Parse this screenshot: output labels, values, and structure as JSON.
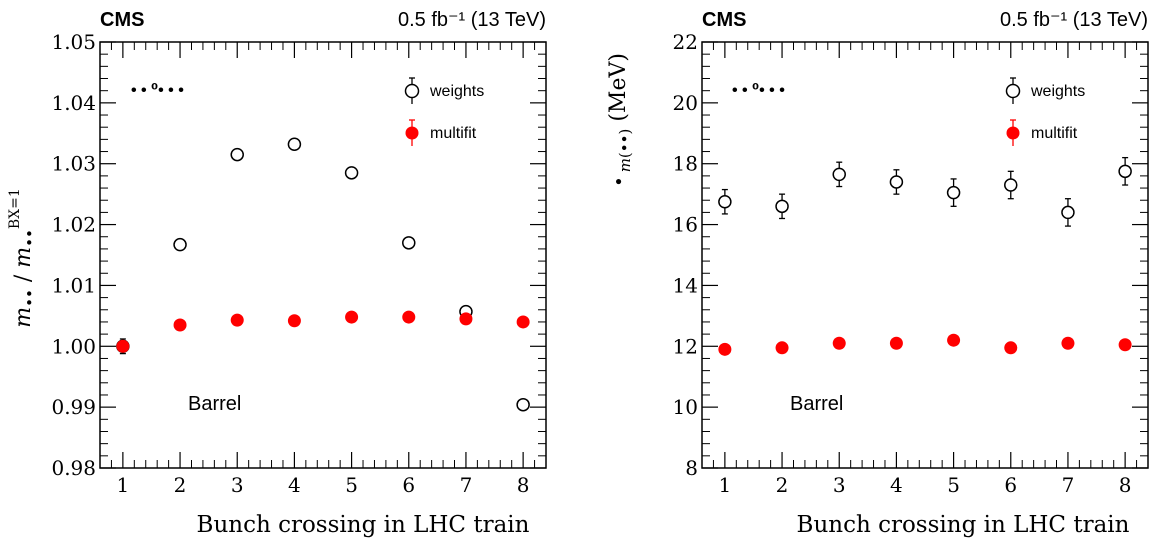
{
  "colors": {
    "weights": "#000000",
    "multifit": "#ff0000",
    "axis": "#000000"
  },
  "chart_data": [
    {
      "type": "scatter",
      "header_left": "CMS",
      "header_right": "0.5 fb⁻¹ (13 TeV)",
      "xlabel": "Bunch crossing in LHC train",
      "ylabel": "m•• / m••^BX=1",
      "legend_title": "• • ⁰• • •",
      "annotation": "Barrel",
      "legend_position": "top-right",
      "xlim": [
        0.6,
        8.4
      ],
      "ylim": [
        0.98,
        1.05
      ],
      "yticks": [
        "0.98",
        "0.99",
        "1.00",
        "1.01",
        "1.02",
        "1.03",
        "1.04",
        "1.05"
      ],
      "xticks": [
        "1",
        "2",
        "3",
        "4",
        "5",
        "6",
        "7",
        "8"
      ],
      "x": [
        1,
        2,
        3,
        4,
        5,
        6,
        7,
        8
      ],
      "series": [
        {
          "name": "weights",
          "marker": "open-circle",
          "values": [
            1.0,
            1.0167,
            1.0315,
            1.0332,
            1.0285,
            1.017,
            1.0057,
            0.9904
          ],
          "errors": [
            0.0012,
            0.0008,
            0.0008,
            0.0008,
            0.0008,
            0.0008,
            0.0008,
            0.0008
          ]
        },
        {
          "name": "multifit",
          "marker": "filled-circle",
          "values": [
            1.0,
            1.0035,
            1.0043,
            1.0042,
            1.0048,
            1.0048,
            1.0045,
            1.004
          ],
          "errors": [
            0.0006,
            0.0003,
            0.0003,
            0.0003,
            0.0003,
            0.0003,
            0.0003,
            0.0003
          ]
        }
      ]
    },
    {
      "type": "scatter",
      "header_left": "CMS",
      "header_right": "0.5 fb⁻¹ (13 TeV)",
      "xlabel": "Bunch crossing in LHC train",
      "ylabel": "• m(••) (MeV)",
      "legend_title": "• • ⁰• • •",
      "annotation": "Barrel",
      "legend_position": "top-right",
      "xlim": [
        0.6,
        8.4
      ],
      "ylim": [
        8,
        22
      ],
      "yticks": [
        "8",
        "10",
        "12",
        "14",
        "16",
        "18",
        "20",
        "22"
      ],
      "xticks": [
        "1",
        "2",
        "3",
        "4",
        "5",
        "6",
        "7",
        "8"
      ],
      "x": [
        1,
        2,
        3,
        4,
        5,
        6,
        7,
        8
      ],
      "series": [
        {
          "name": "weights",
          "marker": "open-circle",
          "values": [
            16.75,
            16.6,
            17.65,
            17.4,
            17.05,
            17.3,
            16.4,
            17.75
          ],
          "errors": [
            0.4,
            0.4,
            0.4,
            0.4,
            0.45,
            0.45,
            0.45,
            0.45
          ]
        },
        {
          "name": "multifit",
          "marker": "filled-circle",
          "values": [
            11.9,
            11.95,
            12.1,
            12.1,
            12.2,
            11.95,
            12.1,
            12.05
          ],
          "errors": [
            0.1,
            0.1,
            0.1,
            0.1,
            0.1,
            0.1,
            0.1,
            0.1
          ]
        }
      ]
    }
  ]
}
